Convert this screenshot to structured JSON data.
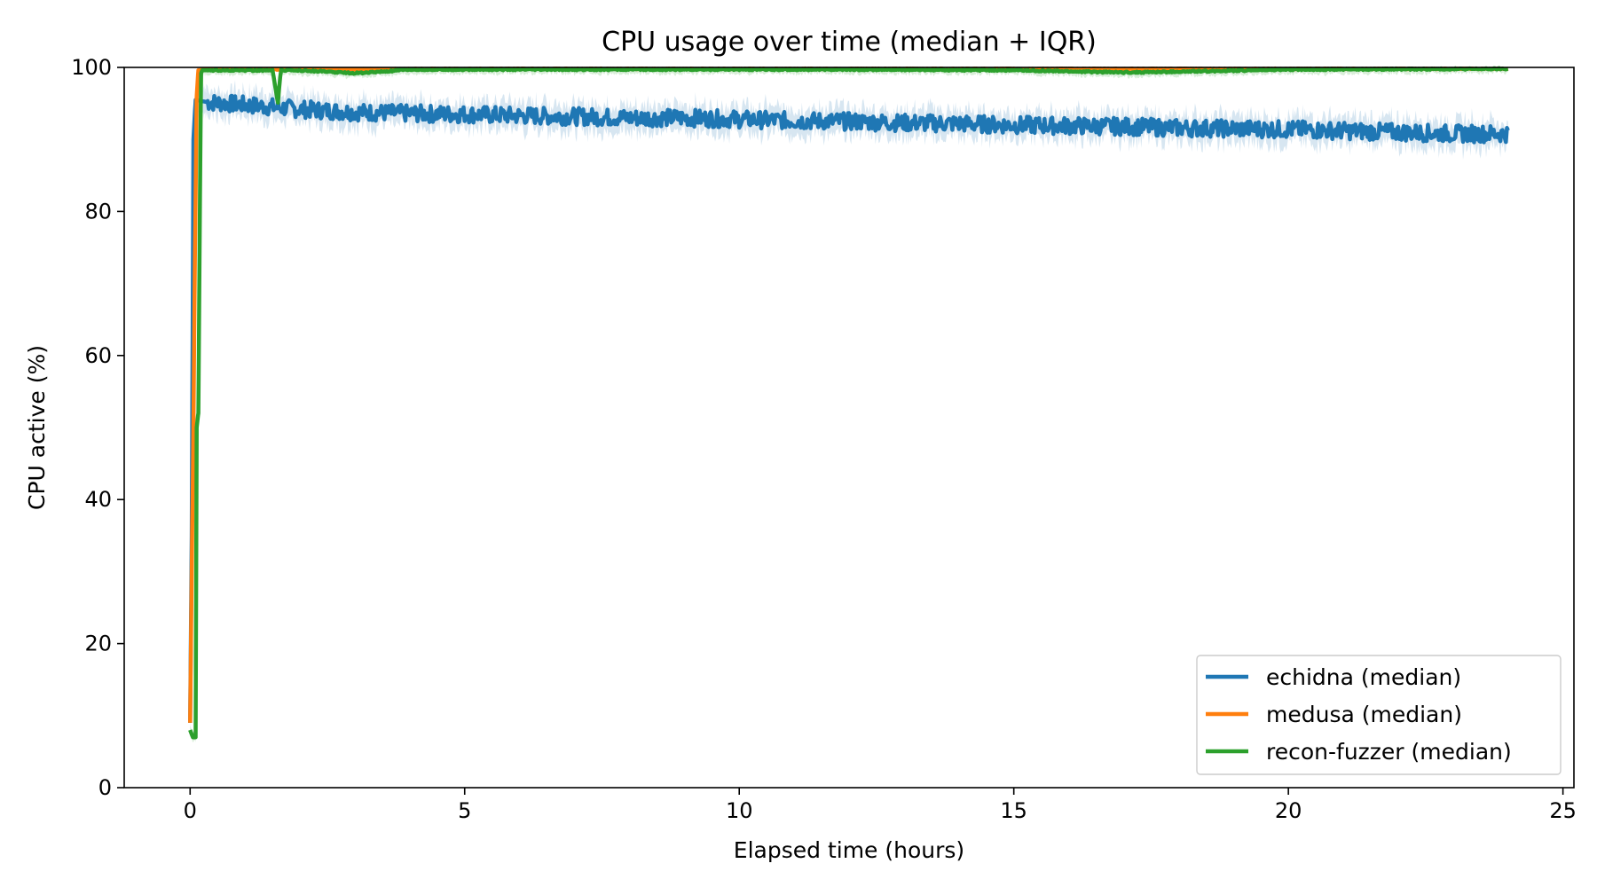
{
  "chart_data": {
    "type": "line",
    "title": "CPU usage over time (median + IQR)",
    "xlabel": "Elapsed time (hours)",
    "ylabel": "CPU active (%)",
    "xlim": [
      -1.2,
      25.2
    ],
    "ylim": [
      0,
      100
    ],
    "xticks": [
      0,
      5,
      10,
      15,
      20,
      25
    ],
    "yticks": [
      0,
      20,
      40,
      60,
      80,
      100
    ],
    "grid": false,
    "legend_position": "lower-right",
    "series": [
      {
        "name": "echidna (median)",
        "color": "#1f77b4",
        "x": [
          0,
          0.03,
          0.06,
          0.1,
          0.3,
          1,
          2,
          3,
          4,
          5,
          6,
          7,
          8,
          9,
          10,
          11,
          12,
          13,
          14,
          15,
          16,
          17,
          18,
          19,
          20,
          21,
          22,
          23,
          24
        ],
        "y": [
          9,
          35,
          90,
          95.5,
          95.2,
          94.8,
          94.2,
          93.8,
          93.6,
          93.5,
          93.3,
          93.2,
          93.0,
          93.0,
          92.8,
          92.6,
          92.5,
          92.3,
          92.2,
          92.0,
          91.9,
          91.8,
          91.6,
          91.5,
          91.4,
          91.2,
          91.0,
          90.8,
          90.8
        ],
        "noise": 1.2,
        "iqr_width": 1.8
      },
      {
        "name": "medusa (median)",
        "color": "#ff7f0e",
        "x": [
          0,
          0.03,
          0.06,
          0.09,
          0.12,
          0.15,
          0.3,
          1,
          5,
          10,
          15,
          20,
          24
        ],
        "y": [
          9,
          30,
          50,
          75,
          96,
          99.6,
          99.7,
          99.7,
          99.8,
          99.8,
          99.8,
          99.8,
          99.8
        ],
        "noise": 0.05,
        "iqr_width": 0.2
      },
      {
        "name": "recon-fuzzer (median)",
        "color": "#2ca02c",
        "x": [
          0,
          0.05,
          0.1,
          0.12,
          0.15,
          0.18,
          0.2,
          0.22,
          0.25,
          0.5,
          1,
          1.5,
          1.6,
          1.65,
          1.7,
          2,
          3,
          3.5,
          4,
          6,
          8,
          10,
          12,
          15,
          17,
          18,
          20,
          24
        ],
        "y": [
          8,
          7,
          7,
          50,
          52,
          82,
          99.2,
          99.6,
          99.6,
          99.6,
          99.6,
          99.6,
          95,
          99.6,
          99.6,
          99.6,
          99.2,
          99.4,
          99.7,
          99.7,
          99.7,
          99.7,
          99.7,
          99.6,
          99.3,
          99.4,
          99.7,
          99.8
        ],
        "noise": 0.1,
        "iqr_width": 0.6
      }
    ]
  }
}
